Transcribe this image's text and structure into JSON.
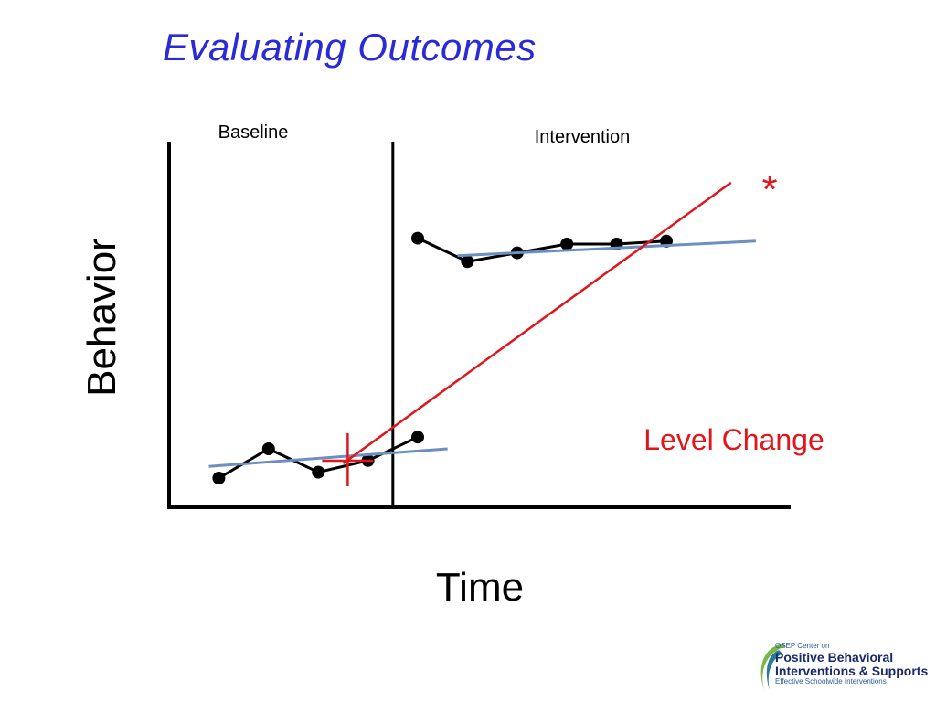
{
  "slide": {
    "title": "Evaluating Outcomes"
  },
  "chart_data": {
    "type": "line",
    "title": "",
    "xlabel": "Time",
    "ylabel": "Behavior",
    "phases": [
      {
        "name": "Baseline",
        "x_range": [
          0,
          4.5
        ]
      },
      {
        "name": "Intervention",
        "x_range": [
          4.5,
          12.5
        ]
      }
    ],
    "series": [
      {
        "name": "Baseline",
        "x": [
          1,
          2,
          3,
          4,
          5
        ],
        "y": [
          1.0,
          2.0,
          1.2,
          1.6,
          2.4
        ],
        "color": "#000000"
      },
      {
        "name": "Intervention",
        "x": [
          5,
          6,
          7,
          8,
          9,
          10
        ],
        "y": [
          9.2,
          8.4,
          8.7,
          9.0,
          9.0,
          9.1
        ],
        "color": "#000000"
      }
    ],
    "trend_lines": [
      {
        "phase": "Baseline",
        "x": [
          0.8,
          5.6
        ],
        "y": [
          1.4,
          2.0
        ],
        "color": "#6a8fc0"
      },
      {
        "phase": "Intervention",
        "x": [
          5.8,
          11.8
        ],
        "y": [
          8.6,
          9.1
        ],
        "color": "#6a8fc0"
      }
    ],
    "level_change_line": {
      "x": [
        3.5,
        11.3
      ],
      "y": [
        1.5,
        11.1
      ],
      "color": "#e0161b"
    },
    "annotations": [
      {
        "text": "Level Change",
        "color": "#e0161b"
      },
      {
        "text": "*",
        "color": "#e0161b"
      }
    ],
    "xlim": [
      0,
      12.5
    ],
    "ylim": [
      0,
      12.5
    ],
    "grid": false,
    "legend": "none"
  },
  "logo": {
    "line1": "OSEP Center on",
    "line2": "Positive Behavioral",
    "line3": "Interventions & Supports",
    "line4": "Effective Schoolwide Interventions",
    "colors": {
      "green": "#7ab648",
      "blue": "#1a2a6c",
      "teal": "#2a7a9a"
    }
  }
}
